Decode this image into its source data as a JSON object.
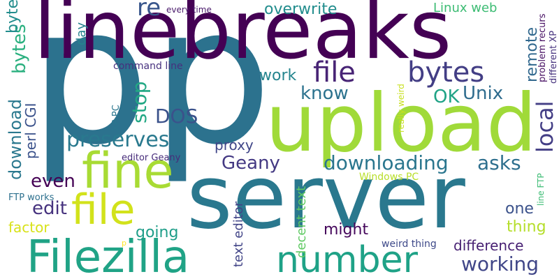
{
  "words": [
    {
      "text": "p",
      "color": "#2c728e"
    },
    {
      "text": "p",
      "color": "#2c728e"
    },
    {
      "text": "linebreaks",
      "color": "#440154"
    },
    {
      "text": "upload",
      "color": "#a0da39"
    },
    {
      "text": "server",
      "color": "#2a788e"
    },
    {
      "text": "fine",
      "color": "#a8db34"
    },
    {
      "text": "file",
      "color": "#d2e21b"
    },
    {
      "text": "Filezilla",
      "color": "#20a386"
    },
    {
      "text": "number",
      "color": "#1fa287"
    },
    {
      "text": "file",
      "color": "#482475"
    },
    {
      "text": "bytes",
      "color": "#433e85"
    },
    {
      "text": "local",
      "color": "#433e85"
    },
    {
      "text": "download",
      "color": "#2a788e"
    },
    {
      "text": "downloading",
      "color": "#2a768e"
    },
    {
      "text": "preserves",
      "color": "#29798e"
    },
    {
      "text": "overwrite",
      "color": "#228d8d"
    },
    {
      "text": "re",
      "color": "#39568c"
    },
    {
      "text": "bytes",
      "color": "#2ab07f"
    },
    {
      "text": "DOS",
      "color": "#3b528b"
    },
    {
      "text": "know",
      "color": "#2c728e"
    },
    {
      "text": "Geany",
      "color": "#443983"
    },
    {
      "text": "asks",
      "color": "#2e6f8e"
    },
    {
      "text": "stop",
      "color": "#22a884"
    },
    {
      "text": "OK",
      "color": "#20a386"
    },
    {
      "text": "Unix",
      "color": "#2f6c8e"
    },
    {
      "text": "remote",
      "color": "#31688e"
    },
    {
      "text": "working",
      "color": "#404688"
    },
    {
      "text": "difference",
      "color": "#482173"
    },
    {
      "text": "might",
      "color": "#46085c"
    },
    {
      "text": "even",
      "color": "#440154"
    },
    {
      "text": "edit",
      "color": "#46327e"
    },
    {
      "text": "factor",
      "color": "#d8e219"
    },
    {
      "text": "going",
      "color": "#1f9e89"
    },
    {
      "text": "proxy",
      "color": "#404688"
    },
    {
      "text": "work",
      "color": "#25858e"
    },
    {
      "text": "thing",
      "color": "#b5de2b"
    },
    {
      "text": "one",
      "color": "#3b528b"
    },
    {
      "text": "perl CGI",
      "color": "#3b528b"
    },
    {
      "text": "bytes",
      "color": "#228d8d"
    },
    {
      "text": "Linux web",
      "color": "#3dbc74"
    },
    {
      "text": "day",
      "color": "#25838e"
    },
    {
      "text": "text editor",
      "color": "#414487"
    },
    {
      "text": "decent text",
      "color": "#5ec962"
    },
    {
      "text": "command line",
      "color": "#46307e"
    },
    {
      "text": "every time",
      "color": "#48186a"
    },
    {
      "text": "problem recurs",
      "color": "#471063"
    },
    {
      "text": "different XP",
      "color": "#46327e"
    },
    {
      "text": "XP PC",
      "color": "#2a768e"
    },
    {
      "text": "really weird",
      "color": "#c8e020"
    },
    {
      "text": "editor Geany",
      "color": "#472c7a"
    },
    {
      "text": "Windows PC",
      "color": "#b8de29"
    },
    {
      "text": "FTP works",
      "color": "#2d708e"
    },
    {
      "text": "line FTP",
      "color": "#3dbc74"
    },
    {
      "text": "weird thing",
      "color": "#3e4989"
    },
    {
      "text": "p",
      "color": "#fde725"
    }
  ]
}
